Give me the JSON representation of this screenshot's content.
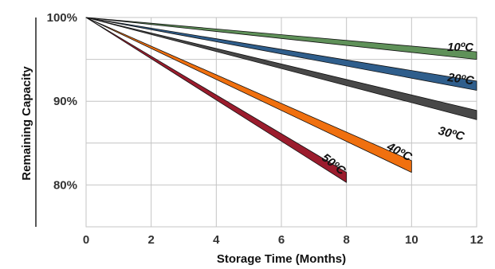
{
  "chart_data": {
    "type": "line",
    "xlabel": "Storage Time (Months)",
    "ylabel": "Remaining Capacity",
    "xlim": [
      0,
      12
    ],
    "ylim": [
      75,
      100
    ],
    "x_ticks": [
      "0",
      "2",
      "4",
      "6",
      "8",
      "10",
      "12"
    ],
    "y_ticks": [
      {
        "value": 100,
        "label": "100%"
      },
      {
        "value": 90,
        "label": "90%"
      },
      {
        "value": 80,
        "label": "80%"
      }
    ],
    "grid": true,
    "series": [
      {
        "name": "10ºC",
        "color": "#5f9159",
        "x": [
          0,
          12
        ],
        "y_upper": [
          100,
          95.9
        ],
        "y_lower": [
          100,
          95.0
        ]
      },
      {
        "name": "20ºC",
        "color": "#2f5e8c",
        "x": [
          0,
          12
        ],
        "y_upper": [
          100,
          92.4
        ],
        "y_lower": [
          100,
          91.3
        ]
      },
      {
        "name": "30ºC",
        "color": "#484848",
        "x": [
          0,
          12
        ],
        "y_upper": [
          100,
          88.9
        ],
        "y_lower": [
          100,
          87.8
        ]
      },
      {
        "name": "40ºC",
        "color": "#f0700f",
        "x": [
          0,
          10
        ],
        "y_upper": [
          100,
          82.9
        ],
        "y_lower": [
          100,
          81.5
        ]
      },
      {
        "name": "50ºC",
        "color": "#9b1c2d",
        "x": [
          0,
          8
        ],
        "y_upper": [
          100,
          81.5
        ],
        "y_lower": [
          100,
          80.3
        ]
      }
    ]
  }
}
